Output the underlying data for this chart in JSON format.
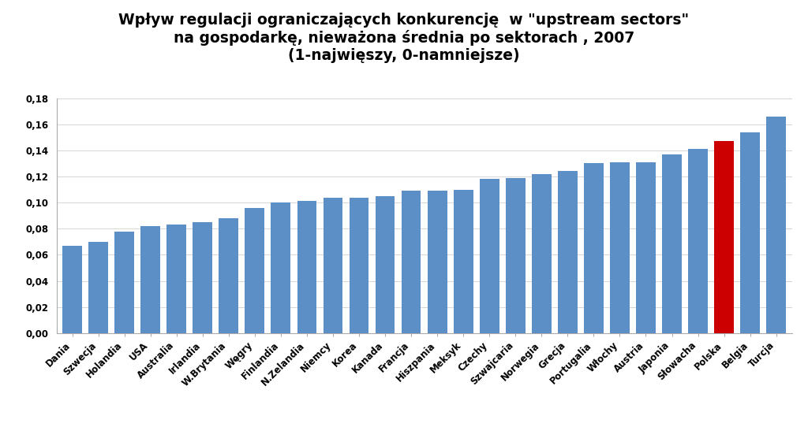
{
  "title_line1": "Wpływ regulacji ograniczających konkurencję  w \"upstream sectors\"",
  "title_line2": "na gospodarkę, nieważona średnia po sektorach , 2007",
  "title_line3": "(1-najwięszy, 0-namniejsze)",
  "categories": [
    "Dania",
    "Szwecja",
    "Holandia",
    "USA",
    "Australia",
    "Irlandia",
    "W.Brytania",
    "Węgry",
    "Finlandia",
    "N.Zelandia",
    "Niemcy",
    "Korea",
    "Kanada",
    "Francja",
    "Hiszpania",
    "Meksyk",
    "Czechy",
    "Szwajcaria",
    "Norwegia",
    "Grecja",
    "Portugalia",
    "Włochy",
    "Austria",
    "Japonia",
    "Słowacha",
    "Polska",
    "Belgia",
    "Turcja"
  ],
  "values": [
    0.067,
    0.07,
    0.078,
    0.082,
    0.083,
    0.085,
    0.088,
    0.096,
    0.1,
    0.101,
    0.104,
    0.104,
    0.105,
    0.109,
    0.109,
    0.11,
    0.118,
    0.119,
    0.122,
    0.124,
    0.13,
    0.131,
    0.131,
    0.137,
    0.141,
    0.147,
    0.154,
    0.166
  ],
  "bar_color_default": "#5b8fc5",
  "bar_color_highlight": "#cc0000",
  "highlight_index": 25,
  "ylim": [
    0,
    0.18
  ],
  "yticks": [
    0.0,
    0.02,
    0.04,
    0.06,
    0.08,
    0.1,
    0.12,
    0.14,
    0.16,
    0.18
  ],
  "background_color": "#ffffff",
  "title_fontsize": 13.5,
  "tick_fontsize": 8.5,
  "grid_color": "#d0d0d0",
  "spine_color": "#aaaaaa"
}
